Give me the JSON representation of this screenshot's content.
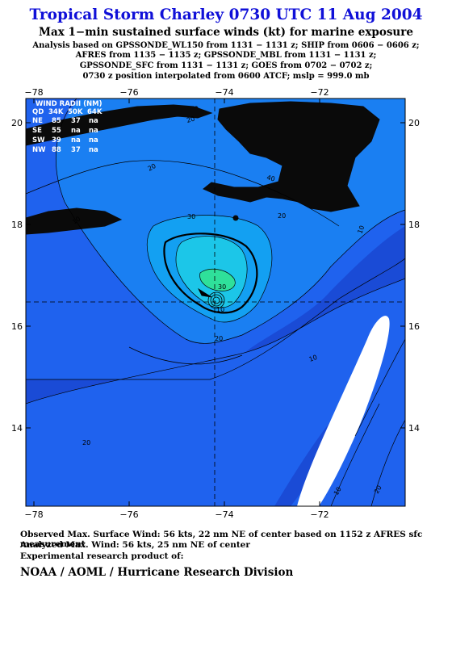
{
  "header": {
    "title": "Tropical Storm Charley 0730 UTC 11 Aug 2004",
    "subtitle": "Max 1−min sustained surface winds (kt) for marine exposure",
    "line1": "Analysis based on  GPSSONDE_WL150 from 1131 − 1131 z;  SHIP from 0606 − 0606 z;",
    "line2": "AFRES from 1135 − 1135 z;  GPSSONDE_MBL from 1131 − 1131 z;",
    "line3": "GPSSONDE_SFC from 1131 − 1131 z;  GOES from 0702 − 0702 z;",
    "line4": "0730 z position interpolated from 0600 ATCF; mslp = 999.0 mb"
  },
  "map": {
    "lon_ticks": [
      "−78",
      "−76",
      "−74",
      "−72"
    ],
    "lat_ticks": [
      "20",
      "18",
      "16",
      "14"
    ],
    "lon_range": [
      -78.2,
      -70.5
    ],
    "lat_range": [
      12.4,
      20.3
    ],
    "center": {
      "lon": -74.2,
      "lat": 16.5
    },
    "contour_labels": [
      "20",
      "20",
      "30",
      "10",
      "40",
      "20",
      "10",
      "20",
      "10",
      "20",
      "10",
      "20",
      "30",
      "10"
    ]
  },
  "wind_radii": {
    "title": "WIND RADII (NM)",
    "header": [
      "QD",
      "34K",
      "50K",
      "64K"
    ],
    "rows": [
      [
        "NE",
        "85",
        "37",
        "na"
      ],
      [
        "SE",
        "55",
        "na",
        "na"
      ],
      [
        "SW",
        "39",
        "na",
        "na"
      ],
      [
        "NW",
        "88",
        "37",
        "na"
      ]
    ]
  },
  "footer": {
    "observed": "Observed Max. Surface Wind: 56 kts, 22 nm NE of center based on 1152 z AFRES sfc measurement",
    "analyzed": "Analyzed Max. Wind: 56 kts, 25 nm NE of center",
    "experimental": "Experimental research product of:",
    "org": "NOAA / AOML / Hurricane Research Division"
  },
  "colors": {
    "band_0_10": "#1a4bd6",
    "band_10_20": "#1f62ee",
    "band_20_30": "#1a7ff2",
    "band_30_40": "#13a0f2",
    "band_40_50": "#1cc6e8",
    "band_50_plus": "#2fe09a",
    "land": "#0a0a0a",
    "title": "#1010d8"
  }
}
